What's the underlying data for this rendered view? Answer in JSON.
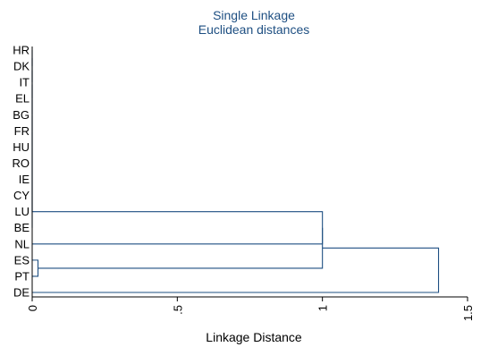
{
  "chart_data": {
    "type": "dendrogram",
    "title": "Single Linkage",
    "subtitle": "Euclidean distances",
    "xlabel": "Linkage Distance",
    "xlim": [
      0,
      1.5
    ],
    "x_ticks": [
      {
        "value": 0,
        "label": "0"
      },
      {
        "value": 0.5,
        "label": ".5"
      },
      {
        "value": 1,
        "label": "1"
      },
      {
        "value": 1.5,
        "label": "1.5"
      }
    ],
    "leaves": [
      "HR",
      "DK",
      "IT",
      "EL",
      "BG",
      "FR",
      "HU",
      "RO",
      "IE",
      "CY",
      "LU",
      "BE",
      "NL",
      "ES",
      "PT",
      "DE"
    ],
    "merges": [
      {
        "a": "HR",
        "b": "DK",
        "distance": 0
      },
      {
        "a": "#0",
        "b": "IT",
        "distance": 0
      },
      {
        "a": "#1",
        "b": "EL",
        "distance": 0
      },
      {
        "a": "#2",
        "b": "BG",
        "distance": 0
      },
      {
        "a": "#3",
        "b": "FR",
        "distance": 0
      },
      {
        "a": "#4",
        "b": "HU",
        "distance": 0
      },
      {
        "a": "#5",
        "b": "RO",
        "distance": 0
      },
      {
        "a": "#6",
        "b": "IE",
        "distance": 0
      },
      {
        "a": "#7",
        "b": "CY",
        "distance": 0
      },
      {
        "a": "#8",
        "b": "LU",
        "distance": 0
      },
      {
        "a": "#9",
        "b": "BE",
        "distance": 0
      },
      {
        "a": "ES",
        "b": "PT",
        "distance": 0.02
      },
      {
        "a": "#10",
        "b": "NL",
        "distance": 1.0
      },
      {
        "a": "#11",
        "b": "#12",
        "distance": 1.0
      },
      {
        "a": "#13",
        "b": "DE",
        "distance": 1.4
      }
    ],
    "grid": false,
    "line_color": "#1e4f82"
  }
}
